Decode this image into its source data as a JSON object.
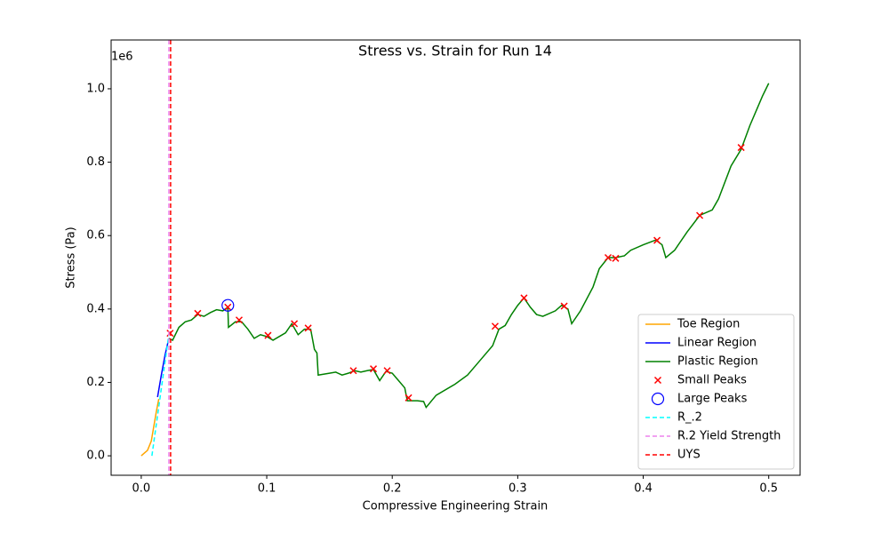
{
  "chart_data": {
    "type": "line",
    "title": "Stress vs. Strain for Run 14",
    "x_label": "Compressive Engineering Strain",
    "y_label": "Stress (Pa)",
    "y_offset_label": "1e6",
    "xlim": [
      -0.024,
      0.525
    ],
    "ylim": [
      -53000,
      1133000
    ],
    "xticks": [
      {
        "value": 0,
        "label": "0.0"
      },
      0.1,
      0.2,
      0.3,
      0.4,
      0.5
    ],
    "yticks": [
      {
        "value": 0,
        "label": "0.0"
      },
      {
        "value": 200000,
        "label": "0.2"
      },
      {
        "value": 400000,
        "label": "0.4"
      },
      {
        "value": 600000,
        "label": "0.6"
      },
      {
        "value": 800000,
        "label": "0.8"
      },
      {
        "value": 1000000,
        "label": "1.0"
      }
    ],
    "legend": "lower right",
    "series": [
      {
        "name": "Toe Region",
        "color": "#ffa500",
        "style": "solid",
        "x": [
          0,
          0.005,
          0.008,
          0.01,
          0.012,
          0.014
        ],
        "values": [
          0,
          15000,
          40000,
          80000,
          120000,
          155000
        ]
      },
      {
        "name": "Linear Region",
        "color": "#0000ff",
        "style": "solid",
        "x": [
          0.013,
          0.016,
          0.019,
          0.022
        ],
        "values": [
          160000,
          220000,
          275000,
          320000
        ]
      },
      {
        "name": "Plastic Region",
        "color": "#008000",
        "style": "solid",
        "x": [
          0.022,
          0.025,
          0.03,
          0.035,
          0.04,
          0.045,
          0.05,
          0.055,
          0.06,
          0.065,
          0.069,
          0.0695,
          0.075,
          0.08,
          0.085,
          0.09,
          0.095,
          0.1,
          0.105,
          0.11,
          0.115,
          0.12,
          0.125,
          0.13,
          0.135,
          0.138,
          0.14,
          0.141,
          0.15,
          0.155,
          0.16,
          0.165,
          0.17,
          0.175,
          0.18,
          0.185,
          0.19,
          0.195,
          0.2,
          0.205,
          0.21,
          0.212,
          0.22,
          0.225,
          0.227,
          0.235,
          0.25,
          0.26,
          0.27,
          0.28,
          0.285,
          0.29,
          0.295,
          0.3,
          0.305,
          0.31,
          0.315,
          0.32,
          0.33,
          0.335,
          0.34,
          0.343,
          0.35,
          0.36,
          0.365,
          0.372,
          0.378,
          0.385,
          0.39,
          0.4,
          0.41,
          0.415,
          0.418,
          0.425,
          0.435,
          0.445,
          0.455,
          0.46,
          0.47,
          0.478,
          0.485,
          0.495,
          0.5
        ],
        "values": [
          320000,
          315000,
          350000,
          365000,
          370000,
          385000,
          380000,
          390000,
          398000,
          395000,
          405000,
          350000,
          365000,
          365000,
          345000,
          320000,
          330000,
          325000,
          315000,
          325000,
          335000,
          360000,
          330000,
          345000,
          345000,
          290000,
          280000,
          220000,
          225000,
          228000,
          220000,
          225000,
          232000,
          228000,
          232000,
          235000,
          205000,
          230000,
          225000,
          205000,
          185000,
          150000,
          150000,
          148000,
          132000,
          165000,
          195000,
          220000,
          260000,
          300000,
          345000,
          355000,
          385000,
          410000,
          430000,
          405000,
          385000,
          380000,
          395000,
          410000,
          400000,
          360000,
          395000,
          460000,
          510000,
          540000,
          540000,
          545000,
          560000,
          575000,
          588000,
          575000,
          540000,
          560000,
          610000,
          655000,
          670000,
          700000,
          790000,
          835000,
          900000,
          980000,
          1015000
        ]
      },
      {
        "name": "Small Peaks",
        "color": "#ff0000",
        "style": "x-marker",
        "x": [
          0.023,
          0.045,
          0.069,
          0.078,
          0.101,
          0.122,
          0.133,
          0.169,
          0.185,
          0.196,
          0.213,
          0.282,
          0.305,
          0.337,
          0.372,
          0.378,
          0.411,
          0.445,
          0.478
        ],
        "values": [
          334000,
          388000,
          405000,
          370000,
          328000,
          360000,
          348000,
          232000,
          237000,
          232000,
          158000,
          353000,
          430000,
          408000,
          540000,
          538000,
          587000,
          655000,
          840000
        ]
      },
      {
        "name": "Large Peaks",
        "color": "#0000ff",
        "style": "circle",
        "x": [
          0.069
        ],
        "values": [
          410000
        ]
      },
      {
        "name": "R_.2",
        "color": "#00ffff",
        "style": "dashed",
        "x": [
          0.0085,
          0.022
        ],
        "values": [
          0,
          330000
        ]
      },
      {
        "name": "R.2 Yield Strength",
        "color": "#ee82ee",
        "style": "vline",
        "vline": 0.022
      },
      {
        "name": "UYS",
        "color": "#ff0000",
        "style": "vline",
        "vline": 0.0234
      }
    ]
  }
}
